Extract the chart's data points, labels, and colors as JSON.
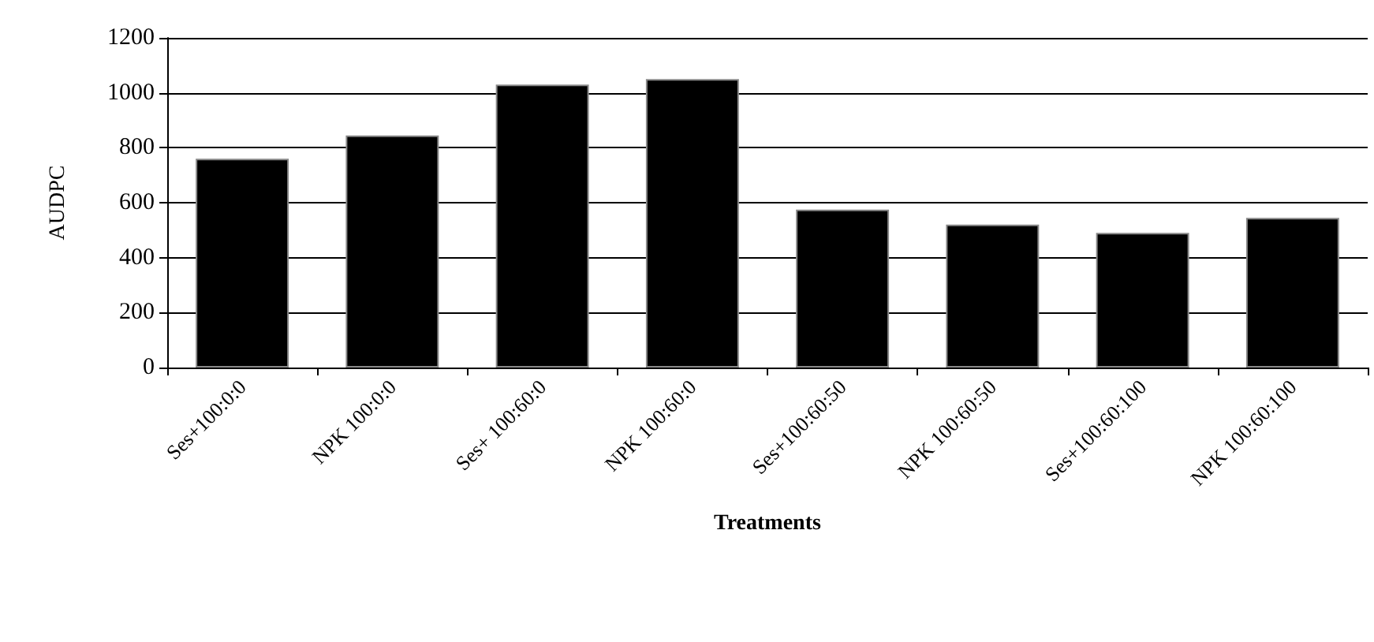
{
  "chart_data": {
    "type": "bar",
    "xlabel": "Treatments",
    "ylabel": "AUDPC",
    "categories": [
      "Ses+100:0:0",
      "NPK 100:0:0",
      "Ses+ 100:60:0",
      "NPK 100:60:0",
      "Ses+100:60:50",
      "NPK 100:60:50",
      "Ses+100:60:100",
      "NPK 100:60:100"
    ],
    "values": [
      760,
      845,
      1030,
      1050,
      575,
      520,
      490,
      545
    ],
    "color": "#000000",
    "ylim": [
      0,
      1200
    ],
    "yticks": [
      0,
      200,
      400,
      600,
      800,
      1000,
      1200
    ],
    "grid": "y"
  }
}
